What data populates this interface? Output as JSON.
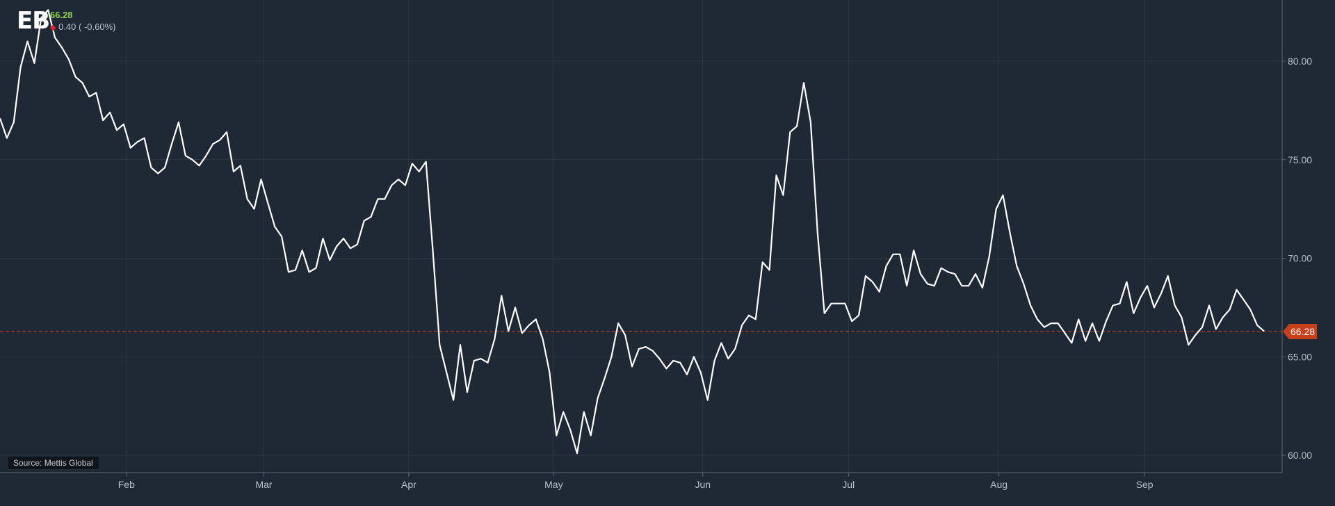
{
  "header": {
    "ticker": "EB",
    "price": "66.28",
    "change_icon": "down-triangle-icon",
    "change": "0.40 ( -0.60%)"
  },
  "source": "Source: Mettis Global",
  "colors": {
    "background": "#1e2935",
    "line": "#ffffff",
    "grid": "#2c3845",
    "last_price": "#c8401a",
    "price_up": "#8fd14f",
    "price_down": "#e8202a"
  },
  "chart_data": {
    "type": "line",
    "title": "",
    "xlabel": "",
    "ylabel": "",
    "x_tick_labels": [
      "Feb",
      "Mar",
      "Apr",
      "May",
      "Jun",
      "Jul",
      "Aug",
      "Sep"
    ],
    "y_tick_labels": [
      "60.00",
      "65.00",
      "70.00",
      "75.00",
      "80.00"
    ],
    "ylim": [
      59.2,
      83.2
    ],
    "xlim": [
      0,
      186.3
    ],
    "y_axis_position": "right",
    "grid": true,
    "last_value": 66.28,
    "last_value_label": "66.28",
    "series": [
      {
        "values": [
          77.1,
          76.1,
          76.9,
          79.7,
          81.0,
          79.9,
          82.2,
          82.6,
          81.2,
          80.7,
          80.1,
          79.2,
          78.9,
          78.2,
          78.4,
          77.0,
          77.4,
          76.5,
          76.8,
          75.6,
          75.9,
          76.1,
          74.6,
          74.3,
          74.6,
          75.8,
          76.9,
          75.2,
          75.0,
          74.7,
          75.2,
          75.8,
          76.0,
          76.4,
          74.4,
          74.7,
          73.0,
          72.5,
          74.0,
          72.8,
          71.6,
          71.1,
          69.3,
          69.4,
          70.4,
          69.3,
          69.5,
          71.0,
          69.9,
          70.6,
          71.0,
          70.5,
          70.7,
          71.9,
          72.1,
          73.0,
          73.0,
          73.7,
          74.0,
          73.7,
          74.8,
          74.4,
          74.9,
          70.4,
          65.6,
          64.2,
          62.8,
          65.6,
          63.2,
          64.8,
          64.9,
          64.7,
          65.9,
          68.1,
          66.3,
          67.5,
          66.2,
          66.6,
          66.9,
          65.9,
          64.2,
          61.0,
          62.2,
          61.3,
          60.1,
          62.2,
          61.0,
          62.9,
          63.9,
          65.0,
          66.7,
          66.1,
          64.5,
          65.4,
          65.5,
          65.3,
          64.9,
          64.4,
          64.8,
          64.7,
          64.1,
          65.0,
          64.2,
          62.8,
          64.8,
          65.7,
          64.9,
          65.4,
          66.6,
          67.1,
          66.9,
          69.8,
          69.4,
          74.2,
          73.2,
          76.4,
          76.7,
          78.9,
          76.9,
          71.3,
          67.2,
          67.7,
          67.7,
          67.7,
          66.8,
          67.1,
          69.1,
          68.8,
          68.3,
          69.6,
          70.2,
          70.2,
          68.6,
          70.4,
          69.2,
          68.7,
          68.6,
          69.5,
          69.3,
          69.2,
          68.6,
          68.6,
          69.2,
          68.5,
          70.1,
          72.5,
          73.2,
          71.3,
          69.6,
          68.7,
          67.6,
          66.9,
          66.5,
          66.7,
          66.7,
          66.2,
          65.7,
          66.9,
          65.8,
          66.7,
          65.8,
          66.8,
          67.6,
          67.7,
          68.8,
          67.2,
          68.0,
          68.6,
          67.5,
          68.2,
          69.1,
          67.6,
          67.0,
          65.6,
          66.1,
          66.5,
          67.6,
          66.4,
          67.0,
          67.4,
          68.4,
          67.9,
          67.4,
          66.6,
          66.3
        ]
      }
    ]
  }
}
